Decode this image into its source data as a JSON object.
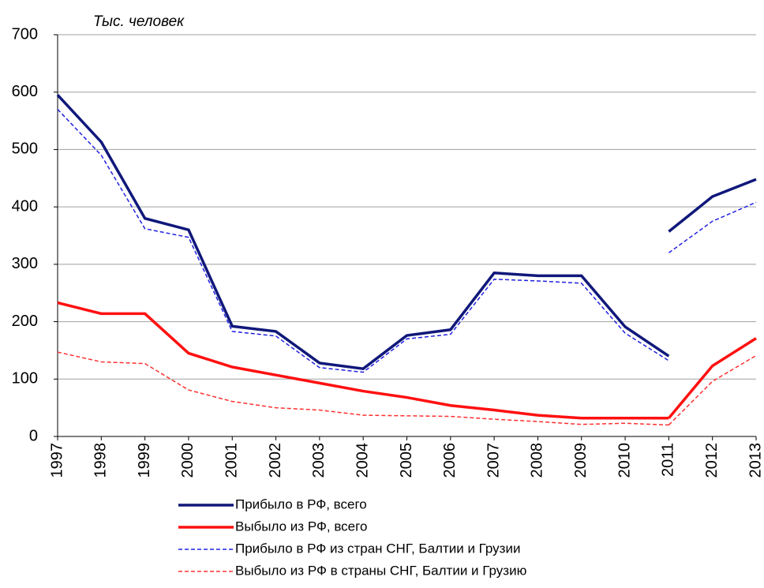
{
  "chart_data": {
    "type": "line",
    "y_label": "Тыс. человек",
    "x": [
      1997,
      1998,
      1999,
      2000,
      2001,
      2002,
      2003,
      2004,
      2005,
      2006,
      2007,
      2008,
      2009,
      2010,
      2011,
      2011,
      2011,
      2012,
      2013
    ],
    "xlim": [
      1997,
      2013
    ],
    "xticks": [
      1997,
      1998,
      1999,
      2000,
      2001,
      2002,
      2003,
      2004,
      2005,
      2006,
      2007,
      2008,
      2009,
      2010,
      2011,
      2012,
      2013
    ],
    "ylim": [
      0,
      700
    ],
    "yticks": [
      0,
      100,
      200,
      300,
      400,
      500,
      600,
      700
    ],
    "grid": true,
    "series": [
      {
        "name": "Прибыло в РФ, всего",
        "color": "#10187a",
        "dashed": false,
        "values": [
          595,
          513,
          380,
          360,
          192,
          183,
          128,
          118,
          176,
          186,
          285,
          280,
          280,
          191,
          140,
          null,
          357,
          418,
          448
        ]
      },
      {
        "name": "Выбыло из РФ, всего",
        "color": "#ff1010",
        "dashed": false,
        "values": [
          233,
          214,
          214,
          145,
          121,
          107,
          93,
          79,
          68,
          54,
          46,
          37,
          32,
          32,
          32,
          null,
          32,
          123,
          171
        ]
      },
      {
        "name": "Прибыло в РФ из стран СНГ, Балтии и Грузии",
        "color": "#2020e0",
        "dashed": true,
        "values": [
          570,
          490,
          362,
          347,
          183,
          175,
          120,
          112,
          170,
          178,
          274,
          271,
          267,
          180,
          132,
          null,
          320,
          375,
          408
        ]
      },
      {
        "name": "Выбыло из РФ в страны СНГ, Балтии и Грузию",
        "color": "#ff3030",
        "dashed": true,
        "values": [
          147,
          130,
          127,
          81,
          61,
          50,
          46,
          37,
          36,
          35,
          30,
          26,
          21,
          23,
          20,
          null,
          20,
          96,
          141
        ]
      }
    ]
  }
}
